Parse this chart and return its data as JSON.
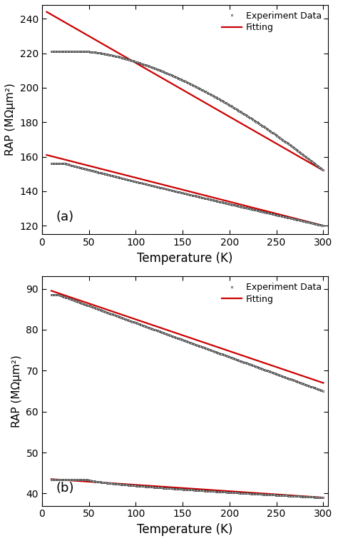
{
  "panel_a": {
    "label": "(a)",
    "ylabel": "RAP (MΩμm²)",
    "xlabel": "Temperature (K)",
    "xlim": [
      5,
      305
    ],
    "ylim": [
      115,
      248
    ],
    "yticks": [
      120,
      140,
      160,
      180,
      200,
      220,
      240
    ],
    "xticks": [
      0,
      50,
      100,
      150,
      200,
      250,
      300
    ],
    "upper_exp": {
      "T0": 10,
      "T1": 300,
      "v0": 221,
      "v1": 152,
      "plateau_T": 45,
      "plateau_v": 221,
      "power": 1.6
    },
    "lower_exp": {
      "T0": 10,
      "T1": 300,
      "v0": 156,
      "v1": 120,
      "plateau_T": 25,
      "plateau_v": 156,
      "power": 0.95
    },
    "upper_fit": {
      "T0": 5,
      "T1": 300,
      "v0": 244,
      "v1": 152
    },
    "lower_fit": {
      "T0": 5,
      "T1": 300,
      "v0": 161,
      "v1": 120
    }
  },
  "panel_b": {
    "label": "(b)",
    "ylabel": "RAP (MΩμm²)",
    "xlabel": "Temperature (K)",
    "xlim": [
      5,
      305
    ],
    "ylim": [
      37,
      93
    ],
    "yticks": [
      40,
      50,
      60,
      70,
      80,
      90
    ],
    "xticks": [
      0,
      50,
      100,
      150,
      200,
      250,
      300
    ],
    "upper_exp": {
      "T0": 10,
      "T1": 300,
      "v0": 88.5,
      "v1": 65,
      "plateau_T": 18,
      "plateau_v": 88.5,
      "power": 1.0
    },
    "lower_exp": {
      "T0": 10,
      "T1": 300,
      "v0": 43.3,
      "v1": 39.0,
      "plateau_T": 50,
      "plateau_v": 43.3,
      "power": 0.7
    },
    "upper_fit": {
      "T0": 10,
      "T1": 300,
      "v0": 89.5,
      "v1": 67.0
    },
    "lower_fit": {
      "T0": 10,
      "T1": 300,
      "v0": 43.5,
      "v1": 39.0
    }
  },
  "exp_line_color": "#888888",
  "exp_marker_facecolor": "white",
  "exp_marker_edgecolor": "#333333",
  "fit_color": "#cc0000",
  "marker": "s",
  "marker_size": 1.8,
  "marker_edge_width": 0.5,
  "linewidth_fit": 1.6,
  "linewidth_exp": 0.5,
  "legend_exp": "Experiment Data",
  "legend_fit": "Fitting",
  "figsize": [
    4.74,
    7.58
  ],
  "dpi": 100
}
